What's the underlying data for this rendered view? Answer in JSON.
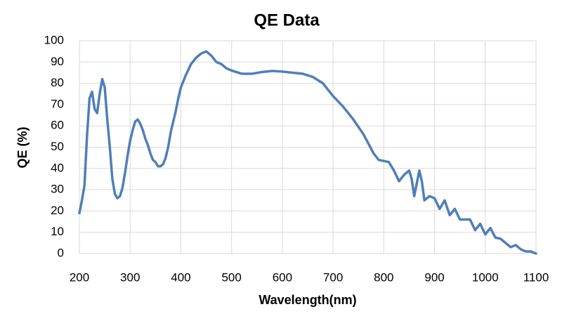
{
  "chart_data": {
    "type": "line",
    "title": "QE Data",
    "x_label": "Wavelength(nm)",
    "y_label": "QE (%)",
    "x": [
      200,
      205,
      210,
      215,
      220,
      225,
      230,
      235,
      240,
      245,
      250,
      255,
      260,
      265,
      270,
      275,
      280,
      285,
      290,
      295,
      300,
      305,
      310,
      315,
      320,
      325,
      330,
      335,
      340,
      345,
      350,
      355,
      360,
      365,
      370,
      375,
      380,
      385,
      390,
      395,
      400,
      410,
      420,
      430,
      440,
      450,
      460,
      470,
      480,
      490,
      500,
      520,
      540,
      560,
      580,
      600,
      620,
      640,
      660,
      680,
      700,
      720,
      740,
      760,
      780,
      790,
      800,
      810,
      820,
      830,
      840,
      850,
      855,
      860,
      865,
      870,
      875,
      880,
      890,
      900,
      910,
      920,
      930,
      940,
      950,
      960,
      970,
      980,
      990,
      1000,
      1010,
      1020,
      1030,
      1040,
      1050,
      1060,
      1070,
      1080,
      1090,
      1100
    ],
    "series": [
      {
        "name": "QE",
        "color": "#4f7fb8",
        "values": [
          19,
          25,
          32,
          55,
          73,
          76,
          68,
          66,
          75,
          82,
          78,
          63,
          50,
          35,
          28,
          26,
          27,
          31,
          38,
          46,
          53,
          58,
          62,
          63,
          61,
          58,
          54,
          51,
          47,
          44,
          43,
          41,
          41,
          42,
          45,
          50,
          57,
          62,
          67,
          73,
          78,
          84,
          89,
          92,
          94,
          95,
          93,
          90,
          89,
          87,
          86,
          84.5,
          84.5,
          85.3,
          85.8,
          85.5,
          85,
          84.5,
          83,
          80,
          74,
          69,
          63,
          56,
          47,
          44,
          43.5,
          43,
          39,
          34,
          37,
          39,
          35,
          27,
          33,
          39,
          34,
          25,
          27,
          26,
          21,
          25,
          18,
          21,
          16,
          16,
          16,
          11,
          14,
          9,
          12,
          7.5,
          7,
          5,
          3,
          4,
          2,
          1,
          1,
          0
        ]
      }
    ],
    "xlim": [
      200,
      1100
    ],
    "xticks": [
      200,
      300,
      400,
      500,
      600,
      700,
      800,
      900,
      1000,
      1100
    ],
    "ylim": [
      0,
      100
    ],
    "yticks": [
      0,
      10,
      20,
      30,
      40,
      50,
      60,
      70,
      80,
      90,
      100
    ],
    "grid": true
  }
}
